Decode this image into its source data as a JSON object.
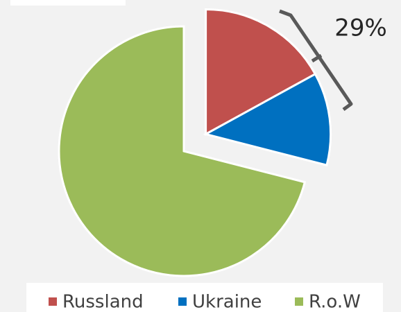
{
  "chart_data": {
    "type": "pie",
    "categories": [
      "Russland",
      "Ukraine",
      "R.o.W"
    ],
    "values": [
      17,
      12,
      71
    ],
    "colors": [
      "#c0504d",
      "#0070c0",
      "#9bbb59"
    ],
    "annotation": "29%",
    "legend": "bottom"
  }
}
